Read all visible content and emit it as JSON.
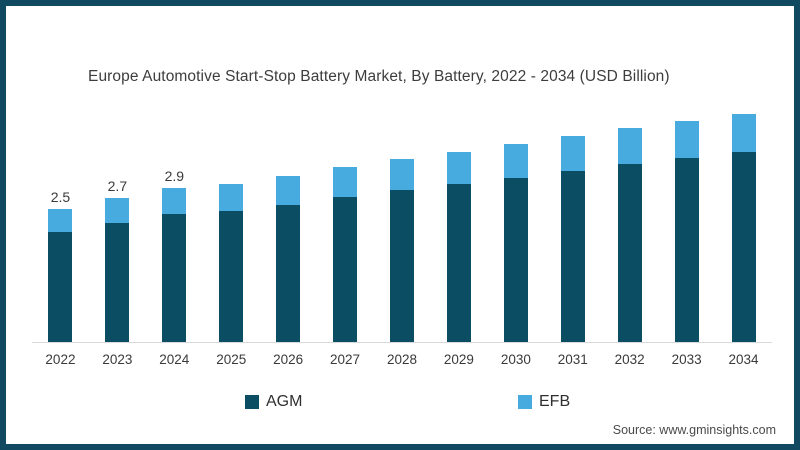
{
  "title": "Europe Automotive Start-Stop Battery Market, By Battery, 2022 - 2034 (USD Billion)",
  "source": "Source: www.gminsights.com",
  "colors": {
    "frame_border": "#114a60",
    "agm": "#0b4d63",
    "efb": "#47abdf",
    "axis_line": "#d9d9d9",
    "text": "#3a3a3a",
    "background": "#ffffff"
  },
  "legend": [
    {
      "label": "AGM",
      "color": "#0b4d63"
    },
    {
      "label": "EFB",
      "color": "#47abdf"
    }
  ],
  "chart_data": {
    "type": "bar",
    "stacked": true,
    "title": "Europe Automotive Start-Stop Battery Market, By Battery, 2022 - 2034 (USD Billion)",
    "xlabel": "",
    "ylabel": "USD Billion",
    "ylim": [
      0,
      4.5
    ],
    "grid": false,
    "legend_position": "bottom",
    "categories": [
      "2022",
      "2023",
      "2024",
      "2025",
      "2026",
      "2027",
      "2028",
      "2029",
      "2030",
      "2031",
      "2032",
      "2033",
      "2034"
    ],
    "series": [
      {
        "name": "AGM",
        "color": "#0b4d63",
        "values": [
          2.07,
          2.23,
          2.41,
          2.46,
          2.57,
          2.73,
          2.86,
          2.97,
          3.08,
          3.21,
          3.34,
          3.45,
          3.58
        ]
      },
      {
        "name": "EFB",
        "color": "#47abdf",
        "values": [
          0.43,
          0.47,
          0.49,
          0.51,
          0.55,
          0.56,
          0.58,
          0.6,
          0.64,
          0.66,
          0.68,
          0.7,
          0.71
        ]
      }
    ],
    "totals": [
      2.5,
      2.7,
      2.9,
      2.97,
      3.12,
      3.29,
      3.44,
      3.57,
      3.72,
      3.87,
      4.02,
      4.15,
      4.29
    ],
    "bar_labels": [
      "2.5",
      "2.7",
      "2.9",
      "",
      "",
      "",
      "",
      "",
      "",
      "",
      "",
      "",
      ""
    ]
  }
}
